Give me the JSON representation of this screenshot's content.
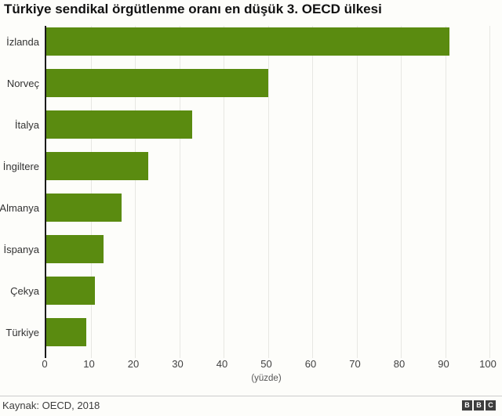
{
  "header": {
    "title": "Türkiye sendikal örgütlenme oranı en düşük 3. OECD ülkesi"
  },
  "chart_data": {
    "type": "bar",
    "orientation": "horizontal",
    "title": "Türkiye sendikal örgütlenme oranı en düşük 3. OECD ülkesi",
    "categories": [
      "İzlanda",
      "Norveç",
      "İtalya",
      "İngiltere",
      "Almanya",
      "İspanya",
      "Çekya",
      "Türkiye"
    ],
    "values": [
      91,
      50,
      33,
      23,
      17,
      13,
      11,
      9
    ],
    "xlabel": "(yüzde)",
    "ylabel": "",
    "xlim": [
      0,
      100
    ],
    "xticks": [
      0,
      10,
      20,
      30,
      40,
      50,
      60,
      70,
      80,
      90,
      100
    ],
    "grid": true,
    "legend": false,
    "bar_color": "#5a8b10"
  },
  "footer": {
    "source": "Kaynak: OECD, 2018",
    "logo_blocks": [
      "B",
      "B",
      "C"
    ]
  },
  "colors": {
    "bar": "#5a8b10",
    "axis": "#1a1a1a",
    "grid": "#e7e7e3",
    "tick_text": "#404040",
    "label_text": "#333333",
    "separator": "#cccccc",
    "logo_bg": "#3d3d3d",
    "background": "#fdfdfa"
  }
}
